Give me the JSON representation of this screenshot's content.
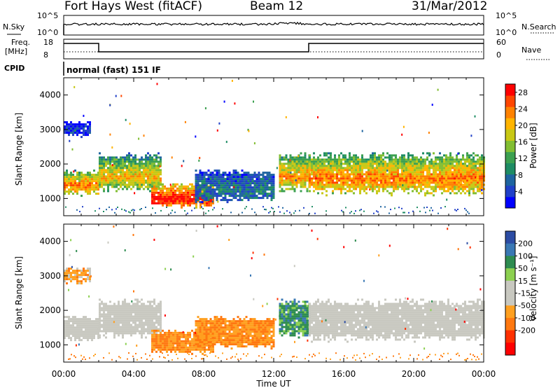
{
  "header": {
    "station": "Fort Hays West (fitACF)",
    "beam": "Beam 12",
    "date": "31/Mar/2012"
  },
  "status_panels": {
    "nsky_label": "N.Sky",
    "nsky_ticks": [
      "10^5",
      "10^0"
    ],
    "nsearch_label": "N.Search",
    "nsearch_ticks": [
      "10^5",
      "10^0"
    ],
    "freq_label": "Freq.",
    "freq_unit": "[MHz]",
    "freq_ticks": [
      "18",
      "8"
    ],
    "nave_label": "Nave",
    "nave_ticks": [
      "60",
      "0"
    ],
    "cpid_label": "CPID",
    "cpid_text": "normal (fast) 151 IF"
  },
  "chart_data": [
    {
      "type": "heatmap",
      "name": "power",
      "ylabel": "Slant Range [km]",
      "xlabel": "",
      "x_ticks": [
        "00:00",
        "04:00",
        "08:00",
        "12:00",
        "16:00",
        "20:00",
        "00:00"
      ],
      "xlim_hours": [
        0,
        24
      ],
      "y_ticks": [
        1000,
        2000,
        3000,
        4000
      ],
      "ylim_km": [
        500,
        4500
      ],
      "colorbar": {
        "label": "Power [dB]",
        "ticks": [
          4,
          8,
          12,
          16,
          20,
          24,
          28
        ],
        "range": [
          0,
          30
        ],
        "colors": [
          "#0000ff",
          "#2040c8",
          "#1e64a0",
          "#1e8c64",
          "#3ca050",
          "#82be32",
          "#c8c814",
          "#ffb400",
          "#ff8200",
          "#ff4600",
          "#ff0000"
        ]
      },
      "regions": [
        {
          "t0": 0.0,
          "t1": 2.0,
          "r0": 1100,
          "r1": 1900,
          "level": 0.55
        },
        {
          "t0": 2.0,
          "t1": 5.5,
          "r0": 1200,
          "r1": 2400,
          "level": 0.45
        },
        {
          "t0": 0.0,
          "t1": 1.5,
          "r0": 2800,
          "r1": 3300,
          "level": 0.2
        },
        {
          "t0": 5.0,
          "t1": 8.5,
          "r0": 750,
          "r1": 1500,
          "level": 0.75
        },
        {
          "t0": 7.5,
          "t1": 12.0,
          "r0": 900,
          "r1": 1900,
          "level": 0.3
        },
        {
          "t0": 12.3,
          "t1": 14.0,
          "r0": 1200,
          "r1": 2400,
          "level": 0.5
        },
        {
          "t0": 14.0,
          "t1": 24.0,
          "r0": 1100,
          "r1": 2400,
          "level": 0.55
        }
      ]
    },
    {
      "type": "heatmap",
      "name": "velocity",
      "ylabel": "Slant Range [km]",
      "xlabel": "Time UT",
      "x_ticks": [
        "00:00",
        "04:00",
        "08:00",
        "12:00",
        "16:00",
        "20:00",
        "00:00"
      ],
      "xlim_hours": [
        0,
        24
      ],
      "y_ticks": [
        1000,
        2000,
        3000,
        4000
      ],
      "ylim_km": [
        500,
        4500
      ],
      "colorbar": {
        "label": "Velocity [m s⁻¹]",
        "ticks": [
          "200",
          "100",
          "50",
          "15",
          "-15",
          "-50",
          "-100",
          "-200"
        ],
        "colors": [
          "#2c4ca4",
          "#3a78b4",
          "#2e8c50",
          "#8cd050",
          "#c8c8c0",
          "#c8c8c0",
          "#ffa020",
          "#ff7810",
          "#ff3000",
          "#ff0000"
        ]
      },
      "regions": [
        {
          "t0": 0.0,
          "t1": 2.0,
          "r0": 1100,
          "r1": 1900,
          "level": 0.5
        },
        {
          "t0": 2.0,
          "t1": 5.5,
          "r0": 1200,
          "r1": 2400,
          "level": 0.5
        },
        {
          "t0": 0.0,
          "t1": 1.5,
          "r0": 2800,
          "r1": 3300,
          "level": 0.65
        },
        {
          "t0": 5.0,
          "t1": 8.5,
          "r0": 750,
          "r1": 1500,
          "level": 0.7
        },
        {
          "t0": 7.5,
          "t1": 12.0,
          "r0": 900,
          "r1": 1900,
          "level": 0.7
        },
        {
          "t0": 12.3,
          "t1": 14.0,
          "r0": 1200,
          "r1": 2400,
          "level": 0.25
        },
        {
          "t0": 14.0,
          "t1": 24.0,
          "r0": 1100,
          "r1": 2400,
          "level": 0.5
        }
      ]
    }
  ]
}
